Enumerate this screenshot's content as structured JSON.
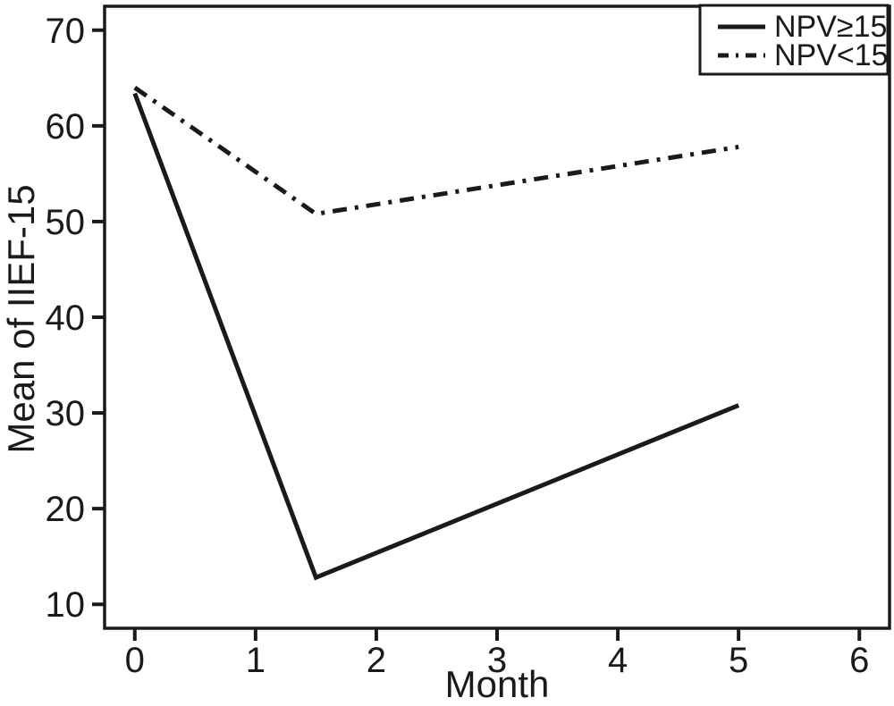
{
  "figure": {
    "background": "#ffffff",
    "ink_color": "#1a1a1a"
  },
  "chart_data": {
    "type": "line",
    "title": "",
    "xlabel": "Month",
    "ylabel": "Mean of IIEF-15",
    "x": [
      0,
      1.5,
      5
    ],
    "series": [
      {
        "name": "NPV≥15",
        "line_style": "solid",
        "values": [
          63.4,
          12.8,
          30.8
        ]
      },
      {
        "name": "NPV<15",
        "line_style": "dash-dot",
        "values": [
          64.0,
          50.8,
          57.8
        ]
      }
    ],
    "xticks": [
      0,
      1,
      2,
      3,
      4,
      5,
      6
    ],
    "yticks": [
      10,
      20,
      30,
      40,
      50,
      60,
      70
    ],
    "xlim": [
      -0.25,
      6.25
    ],
    "ylim": [
      7.5,
      72.5
    ],
    "grid": false,
    "legend": {
      "position": "top-right",
      "entries": [
        "NPV≥15",
        "NPV<15"
      ]
    }
  }
}
